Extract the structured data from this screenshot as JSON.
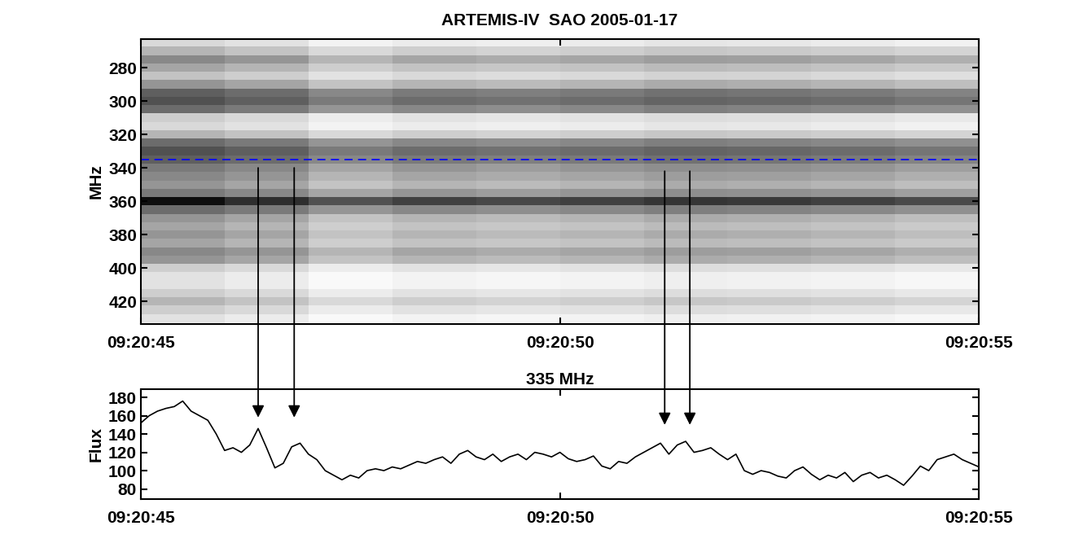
{
  "chart_data": [
    {
      "type": "heatmap",
      "title": "ARTEMIS-IV  SAO 2005-01-17",
      "y_label": "MHz",
      "color": "Greys",
      "x_edges": [
        0,
        1,
        2,
        3,
        4,
        5,
        6,
        7,
        8,
        9,
        10
      ],
      "y_edges": [
        262.5,
        267.5,
        272.5,
        277.5,
        282.5,
        287.5,
        292.5,
        297.5,
        302.5,
        307.5,
        312.5,
        317.5,
        322.5,
        327.5,
        332.5,
        337.5,
        342.5,
        347.5,
        352.5,
        357.5,
        362.5,
        367.5,
        372.5,
        377.5,
        382.5,
        387.5,
        392.5,
        397.5,
        402.5,
        407.5,
        412.5,
        417.5,
        422.5,
        427.5,
        432.5,
        437.5
      ],
      "cells": [
        [
          0.25,
          0.2,
          0.1,
          0.15,
          0.13,
          0.15,
          0.18,
          0.17,
          0.15,
          0.12
        ],
        [
          0.4,
          0.35,
          0.25,
          0.3,
          0.28,
          0.3,
          0.33,
          0.32,
          0.3,
          0.27
        ],
        [
          0.55,
          0.5,
          0.4,
          0.45,
          0.43,
          0.45,
          0.48,
          0.47,
          0.45,
          0.42
        ],
        [
          0.45,
          0.4,
          0.3,
          0.35,
          0.33,
          0.35,
          0.38,
          0.37,
          0.35,
          0.32
        ],
        [
          0.35,
          0.3,
          0.2,
          0.25,
          0.23,
          0.25,
          0.28,
          0.27,
          0.25,
          0.22
        ],
        [
          0.5,
          0.45,
          0.35,
          0.4,
          0.38,
          0.4,
          0.43,
          0.42,
          0.4,
          0.37
        ],
        [
          0.7,
          0.65,
          0.55,
          0.6,
          0.58,
          0.6,
          0.63,
          0.62,
          0.6,
          0.57
        ],
        [
          0.75,
          0.7,
          0.6,
          0.65,
          0.63,
          0.65,
          0.68,
          0.67,
          0.65,
          0.62
        ],
        [
          0.65,
          0.6,
          0.5,
          0.55,
          0.53,
          0.55,
          0.58,
          0.57,
          0.55,
          0.52
        ],
        [
          0.3,
          0.25,
          0.15,
          0.2,
          0.18,
          0.2,
          0.23,
          0.22,
          0.2,
          0.17
        ],
        [
          0.25,
          0.2,
          0.1,
          0.15,
          0.13,
          0.15,
          0.18,
          0.17,
          0.15,
          0.12
        ],
        [
          0.4,
          0.35,
          0.25,
          0.3,
          0.28,
          0.3,
          0.33,
          0.32,
          0.3,
          0.27
        ],
        [
          0.65,
          0.6,
          0.5,
          0.55,
          0.53,
          0.55,
          0.58,
          0.57,
          0.55,
          0.52
        ],
        [
          0.75,
          0.7,
          0.6,
          0.65,
          0.63,
          0.65,
          0.68,
          0.67,
          0.65,
          0.62
        ],
        [
          0.7,
          0.65,
          0.55,
          0.6,
          0.58,
          0.6,
          0.63,
          0.62,
          0.6,
          0.57
        ],
        [
          0.6,
          0.55,
          0.45,
          0.5,
          0.48,
          0.5,
          0.53,
          0.52,
          0.5,
          0.47
        ],
        [
          0.55,
          0.5,
          0.4,
          0.45,
          0.43,
          0.45,
          0.48,
          0.47,
          0.45,
          0.42
        ],
        [
          0.5,
          0.45,
          0.35,
          0.4,
          0.38,
          0.4,
          0.43,
          0.42,
          0.4,
          0.37
        ],
        [
          0.6,
          0.55,
          0.45,
          0.5,
          0.48,
          0.5,
          0.53,
          0.52,
          0.5,
          0.47
        ],
        [
          0.95,
          0.85,
          0.75,
          0.8,
          0.78,
          0.8,
          0.83,
          0.82,
          0.8,
          0.77
        ],
        [
          0.65,
          0.6,
          0.5,
          0.55,
          0.53,
          0.55,
          0.58,
          0.57,
          0.55,
          0.52
        ],
        [
          0.5,
          0.45,
          0.35,
          0.4,
          0.38,
          0.4,
          0.43,
          0.42,
          0.4,
          0.37
        ],
        [
          0.45,
          0.4,
          0.3,
          0.35,
          0.33,
          0.35,
          0.38,
          0.37,
          0.35,
          0.32
        ],
        [
          0.5,
          0.45,
          0.35,
          0.4,
          0.38,
          0.4,
          0.43,
          0.42,
          0.4,
          0.37
        ],
        [
          0.45,
          0.4,
          0.3,
          0.35,
          0.33,
          0.35,
          0.38,
          0.37,
          0.35,
          0.32
        ],
        [
          0.55,
          0.5,
          0.4,
          0.45,
          0.43,
          0.45,
          0.48,
          0.47,
          0.45,
          0.42
        ],
        [
          0.5,
          0.45,
          0.35,
          0.4,
          0.38,
          0.4,
          0.43,
          0.42,
          0.4,
          0.37
        ],
        [
          0.3,
          0.25,
          0.15,
          0.2,
          0.18,
          0.2,
          0.23,
          0.22,
          0.2,
          0.17
        ],
        [
          0.2,
          0.15,
          0.05,
          0.1,
          0.08,
          0.1,
          0.13,
          0.12,
          0.1,
          0.07
        ],
        [
          0.2,
          0.15,
          0.05,
          0.1,
          0.08,
          0.1,
          0.13,
          0.12,
          0.1,
          0.07
        ],
        [
          0.3,
          0.25,
          0.15,
          0.2,
          0.18,
          0.2,
          0.23,
          0.22,
          0.2,
          0.17
        ],
        [
          0.4,
          0.35,
          0.25,
          0.3,
          0.28,
          0.3,
          0.33,
          0.32,
          0.3,
          0.27
        ],
        [
          0.3,
          0.25,
          0.15,
          0.2,
          0.18,
          0.2,
          0.23,
          0.22,
          0.2,
          0.17
        ],
        [
          0.2,
          0.15,
          0.05,
          0.1,
          0.08,
          0.1,
          0.13,
          0.12,
          0.1,
          0.07
        ],
        [
          0.15,
          0.1,
          0.0,
          0.05,
          0.03,
          0.05,
          0.08,
          0.07,
          0.05,
          0.02
        ]
      ],
      "color_range": [
        0,
        1
      ],
      "reference_line": 335,
      "xlim": [
        0,
        10
      ],
      "xticks": [
        {
          "value": 0,
          "label": "09:20:45"
        },
        {
          "value": 5,
          "label": "09:20:50"
        },
        {
          "value": 10,
          "label": "09:20:55"
        }
      ],
      "ylim": [
        433.5,
        263
      ],
      "yticks": [
        280,
        300,
        320,
        340,
        360,
        380,
        400,
        420
      ]
    },
    {
      "type": "line",
      "title": "335 MHz",
      "y_label": "Flux",
      "color": "#000000",
      "x": [
        0.0,
        0.1,
        0.2,
        0.3,
        0.4,
        0.5,
        0.6,
        0.7,
        0.8,
        0.9,
        1.0,
        1.1,
        1.2,
        1.3,
        1.4,
        1.5,
        1.6,
        1.7,
        1.8,
        1.9,
        2.0,
        2.1,
        2.2,
        2.3,
        2.4,
        2.5,
        2.6,
        2.7,
        2.8,
        2.9,
        3.0,
        3.1,
        3.2,
        3.3,
        3.4,
        3.5,
        3.6,
        3.7,
        3.8,
        3.9,
        4.0,
        4.1,
        4.2,
        4.3,
        4.4,
        4.5,
        4.6,
        4.7,
        4.8,
        4.9,
        5.0,
        5.1,
        5.2,
        5.3,
        5.4,
        5.5,
        5.6,
        5.7,
        5.8,
        5.9,
        6.0,
        6.1,
        6.2,
        6.3,
        6.4,
        6.5,
        6.6,
        6.7,
        6.8,
        6.9,
        7.0,
        7.1,
        7.2,
        7.3,
        7.4,
        7.5,
        7.6,
        7.7,
        7.8,
        7.9,
        8.0,
        8.1,
        8.2,
        8.3,
        8.4,
        8.5,
        8.6,
        8.7,
        8.8,
        8.9,
        9.0,
        9.1,
        9.2,
        9.3,
        9.4,
        9.5,
        9.6,
        9.7,
        9.8,
        9.9,
        10.0
      ],
      "values": [
        152,
        160,
        165,
        168,
        170,
        176,
        165,
        160,
        155,
        140,
        122,
        125,
        120,
        128,
        146,
        125,
        103,
        108,
        126,
        130,
        118,
        112,
        100,
        95,
        90,
        95,
        92,
        100,
        102,
        100,
        104,
        102,
        106,
        110,
        108,
        112,
        115,
        108,
        118,
        122,
        115,
        112,
        118,
        110,
        115,
        118,
        112,
        120,
        118,
        115,
        120,
        113,
        110,
        112,
        116,
        105,
        102,
        110,
        108,
        115,
        120,
        125,
        130,
        118,
        128,
        132,
        120,
        122,
        125,
        118,
        112,
        118,
        100,
        96,
        100,
        98,
        94,
        92,
        100,
        104,
        96,
        90,
        95,
        92,
        98,
        88,
        95,
        98,
        92,
        95,
        90,
        84,
        94,
        105,
        100,
        112,
        115,
        118,
        112,
        108,
        104
      ],
      "arrows": [
        {
          "x": 1.4,
          "from": 340,
          "to": 158
        },
        {
          "x": 1.83,
          "from": 340,
          "to": 158
        },
        {
          "x": 6.25,
          "from": 342,
          "to": 150
        },
        {
          "x": 6.55,
          "from": 342,
          "to": 150
        }
      ],
      "xlim": [
        0,
        10
      ],
      "xticks": [
        {
          "value": 0,
          "label": "09:20:45"
        },
        {
          "value": 5,
          "label": "09:20:50"
        },
        {
          "value": 10,
          "label": "09:20:55"
        }
      ],
      "ylim": [
        69,
        189
      ],
      "yticks": [
        80,
        100,
        120,
        140,
        160,
        180
      ]
    }
  ]
}
